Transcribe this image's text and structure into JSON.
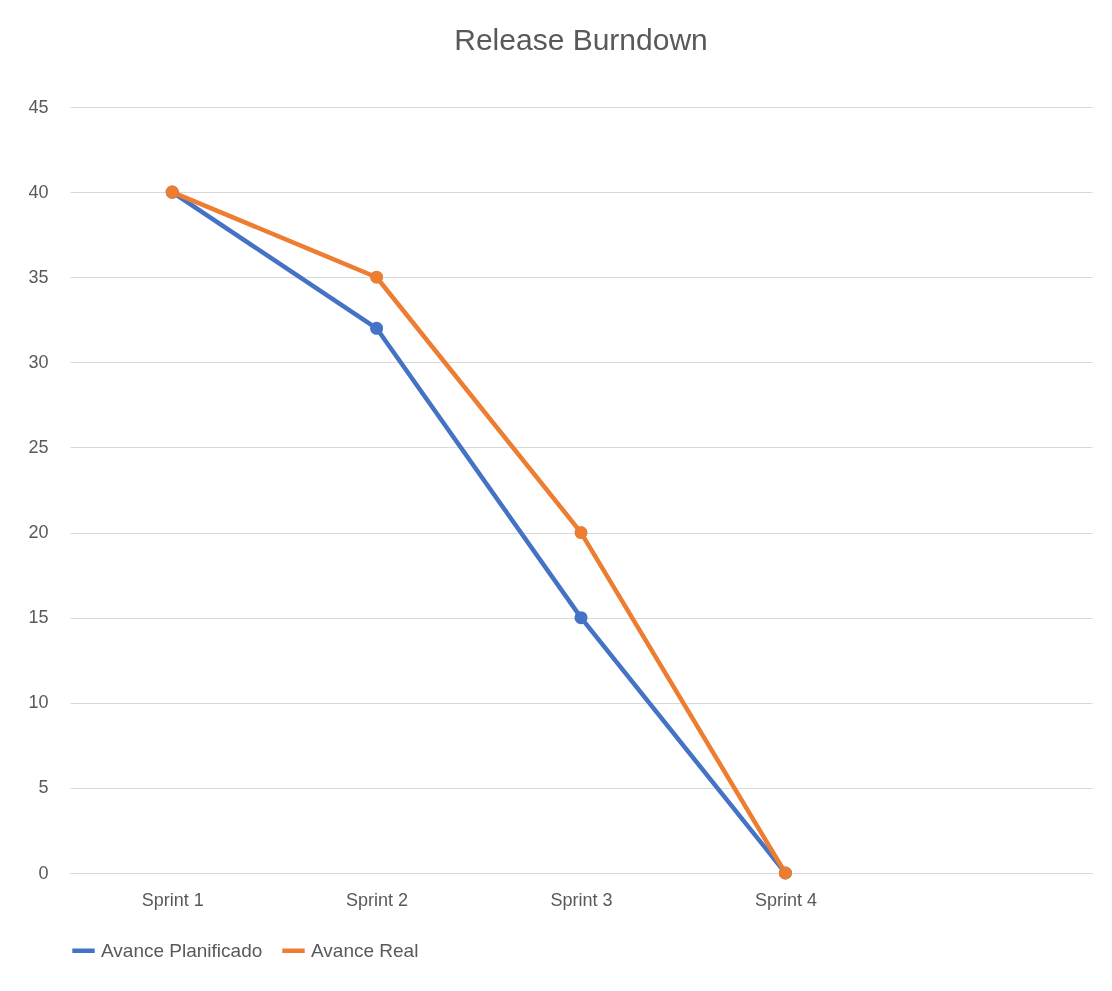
{
  "chart_data": {
    "type": "line",
    "title": "Release Burndown",
    "categories": [
      "Sprint 1",
      "Sprint 2",
      "Sprint 3",
      "Sprint 4",
      null
    ],
    "series": [
      {
        "name": "Avance Planificado",
        "color": "#4472c4",
        "values": [
          40,
          32,
          15,
          0,
          null
        ]
      },
      {
        "name": "Avance Real",
        "color": "#ed7d31",
        "values": [
          40,
          35,
          20,
          0,
          null
        ]
      }
    ],
    "ylim": [
      0,
      45
    ],
    "yticks": [
      0,
      5,
      10,
      15,
      20,
      25,
      30,
      35,
      40,
      45
    ],
    "grid": "y",
    "legend": "bottom",
    "marker": "circle",
    "line_style": "solid"
  }
}
